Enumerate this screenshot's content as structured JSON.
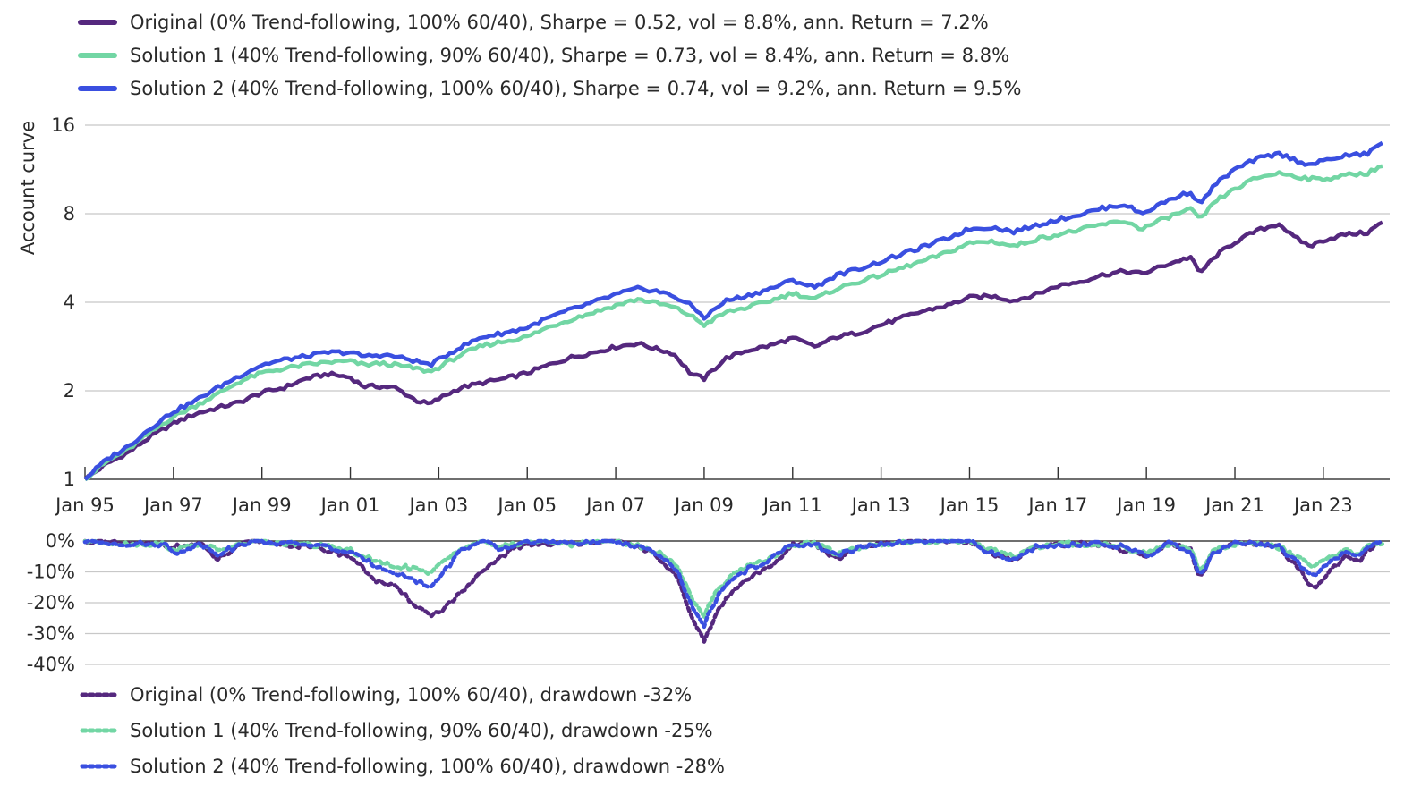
{
  "chart_data": [
    {
      "type": "line",
      "ylabel": "Account curve",
      "yscale": "log2",
      "ylim": [
        1,
        16
      ],
      "yticks": [
        "1",
        "2",
        "4",
        "8",
        "16"
      ],
      "xlim": [
        1995.0,
        2024.5
      ],
      "xticks": [
        "Jan 95",
        "Jan 97",
        "Jan 99",
        "Jan 01",
        "Jan 03",
        "Jan 05",
        "Jan 07",
        "Jan 09",
        "Jan 11",
        "Jan 13",
        "Jan 15",
        "Jan 17",
        "Jan 19",
        "Jan 21",
        "Jan 23"
      ],
      "grid": "horizontal",
      "legend_position": "top-left",
      "series": [
        {
          "name": "Original (0% Trend-following, 100% 60/40), Sharpe = 0.52, vol = 8.8%, ann. Return = 7.2%",
          "color": "#55287e",
          "x": [
            1995.0,
            1995.5,
            1996.0,
            1996.5,
            1997.0,
            1997.5,
            1998.0,
            1998.5,
            1999.0,
            1999.5,
            2000.0,
            2000.5,
            2001.0,
            2001.3,
            2001.7,
            2002.0,
            2002.5,
            2002.8,
            2003.0,
            2003.5,
            2004.0,
            2004.5,
            2005.0,
            2005.5,
            2006.0,
            2006.5,
            2007.0,
            2007.5,
            2007.9,
            2008.3,
            2008.7,
            2009.0,
            2009.5,
            2010.0,
            2010.5,
            2011.0,
            2011.5,
            2012.0,
            2012.5,
            2013.0,
            2013.5,
            2014.0,
            2014.5,
            2015.0,
            2015.5,
            2016.0,
            2016.5,
            2017.0,
            2017.5,
            2018.0,
            2018.5,
            2018.9,
            2019.5,
            2020.0,
            2020.2,
            2020.6,
            2021.0,
            2021.5,
            2022.0,
            2022.3,
            2022.7,
            2023.0,
            2023.5,
            2024.0,
            2024.4
          ],
          "values": [
            1.0,
            1.13,
            1.24,
            1.4,
            1.55,
            1.67,
            1.75,
            1.83,
            1.97,
            2.05,
            2.2,
            2.28,
            2.22,
            2.07,
            2.07,
            2.05,
            1.85,
            1.8,
            1.88,
            2.05,
            2.13,
            2.2,
            2.3,
            2.45,
            2.6,
            2.7,
            2.82,
            2.9,
            2.78,
            2.68,
            2.28,
            2.2,
            2.58,
            2.75,
            2.85,
            3.02,
            2.82,
            3.05,
            3.15,
            3.35,
            3.55,
            3.75,
            3.9,
            4.15,
            4.2,
            4.05,
            4.25,
            4.55,
            4.7,
            4.95,
            5.1,
            5.0,
            5.4,
            5.7,
            5.0,
            5.8,
            6.4,
            7.0,
            7.4,
            6.7,
            6.2,
            6.5,
            6.8,
            6.9,
            7.6
          ]
        },
        {
          "name": "Solution 1 (40% Trend-following, 90% 60/40), Sharpe = 0.73, vol = 8.4%, ann. Return = 8.8%",
          "color": "#72d6a4",
          "x": [
            1995.0,
            1995.5,
            1996.0,
            1996.5,
            1997.0,
            1997.5,
            1998.0,
            1998.5,
            1999.0,
            1999.5,
            2000.0,
            2000.5,
            2001.0,
            2001.3,
            2001.7,
            2002.0,
            2002.5,
            2002.8,
            2003.0,
            2003.5,
            2004.0,
            2004.5,
            2005.0,
            2005.5,
            2006.0,
            2006.5,
            2007.0,
            2007.5,
            2007.9,
            2008.3,
            2008.7,
            2009.0,
            2009.5,
            2010.0,
            2010.5,
            2011.0,
            2011.5,
            2012.0,
            2012.5,
            2013.0,
            2013.5,
            2014.0,
            2014.5,
            2015.0,
            2015.5,
            2016.0,
            2016.5,
            2017.0,
            2017.5,
            2018.0,
            2018.5,
            2018.9,
            2019.5,
            2020.0,
            2020.2,
            2020.6,
            2021.0,
            2021.5,
            2022.0,
            2022.3,
            2022.7,
            2023.0,
            2023.5,
            2024.0,
            2024.4
          ],
          "values": [
            1.0,
            1.15,
            1.27,
            1.45,
            1.63,
            1.78,
            1.95,
            2.15,
            2.3,
            2.38,
            2.45,
            2.5,
            2.52,
            2.45,
            2.48,
            2.45,
            2.38,
            2.32,
            2.4,
            2.65,
            2.85,
            2.95,
            3.05,
            3.3,
            3.5,
            3.7,
            3.9,
            4.1,
            3.98,
            3.85,
            3.6,
            3.35,
            3.7,
            3.85,
            4.05,
            4.3,
            4.1,
            4.45,
            4.7,
            4.95,
            5.25,
            5.55,
            5.9,
            6.35,
            6.45,
            6.2,
            6.55,
            6.8,
            7.05,
            7.35,
            7.55,
            7.1,
            7.8,
            8.3,
            7.6,
            8.9,
            9.7,
            10.6,
            11.0,
            10.8,
            10.5,
            10.5,
            10.8,
            11.0,
            11.8
          ]
        },
        {
          "name": "Solution 2 (40% Trend-following, 100% 60/40), Sharpe = 0.74, vol = 9.2%, ann. Return = 9.5%",
          "color": "#3a4fe0",
          "x": [
            1995.0,
            1995.5,
            1996.0,
            1996.5,
            1997.0,
            1997.5,
            1998.0,
            1998.5,
            1999.0,
            1999.5,
            2000.0,
            2000.5,
            2001.0,
            2001.3,
            2001.7,
            2002.0,
            2002.5,
            2002.8,
            2003.0,
            2003.5,
            2004.0,
            2004.5,
            2005.0,
            2005.5,
            2006.0,
            2006.5,
            2007.0,
            2007.5,
            2007.9,
            2008.3,
            2008.7,
            2009.0,
            2009.5,
            2010.0,
            2010.5,
            2011.0,
            2011.5,
            2012.0,
            2012.5,
            2013.0,
            2013.5,
            2014.0,
            2014.5,
            2015.0,
            2015.5,
            2016.0,
            2016.5,
            2017.0,
            2017.5,
            2018.0,
            2018.5,
            2018.9,
            2019.5,
            2020.0,
            2020.2,
            2020.6,
            2021.0,
            2021.5,
            2022.0,
            2022.3,
            2022.7,
            2023.0,
            2023.5,
            2024.0,
            2024.4
          ],
          "values": [
            1.0,
            1.17,
            1.3,
            1.5,
            1.7,
            1.85,
            2.05,
            2.25,
            2.45,
            2.55,
            2.62,
            2.7,
            2.7,
            2.62,
            2.65,
            2.62,
            2.52,
            2.45,
            2.55,
            2.82,
            3.05,
            3.15,
            3.28,
            3.55,
            3.78,
            4.0,
            4.25,
            4.45,
            4.38,
            4.2,
            3.9,
            3.55,
            4.05,
            4.22,
            4.45,
            4.75,
            4.5,
            4.95,
            5.2,
            5.5,
            5.85,
            6.2,
            6.6,
            7.1,
            7.2,
            6.95,
            7.3,
            7.65,
            7.95,
            8.35,
            8.6,
            8.0,
            8.9,
            9.5,
            8.6,
            10.2,
            11.3,
            12.3,
            12.8,
            12.3,
            11.7,
            12.1,
            12.6,
            12.8,
            14.2
          ]
        }
      ]
    },
    {
      "type": "line",
      "ylim": [
        -40,
        0
      ],
      "yticks": [
        "0%",
        "-10%",
        "-20%",
        "-30%",
        "-40%"
      ],
      "xlim": [
        1995.0,
        2024.5
      ],
      "grid": "horizontal",
      "legend_position": "bottom-left",
      "series": [
        {
          "name": "Original (0% Trend-following, 100% 60/40), drawdown -32%",
          "color": "#55287e",
          "x": [
            1995.0,
            1996.0,
            1996.8,
            1997.0,
            1997.6,
            1998.0,
            1998.6,
            1998.8,
            1999.0,
            1999.5,
            2000.0,
            2000.5,
            2001.0,
            2001.3,
            2001.6,
            2002.0,
            2002.5,
            2002.8,
            2003.0,
            2003.5,
            2004.0,
            2004.4,
            2004.8,
            2005.0,
            2006.0,
            2006.4,
            2007.0,
            2007.6,
            2008.0,
            2008.4,
            2008.7,
            2009.0,
            2009.3,
            2009.6,
            2010.0,
            2010.4,
            2010.8,
            2011.0,
            2011.5,
            2012.0,
            2012.5,
            2013.0,
            2014.0,
            2014.5,
            2015.0,
            2015.5,
            2016.0,
            2016.5,
            2017.0,
            2018.0,
            2018.5,
            2019.0,
            2019.5,
            2020.0,
            2020.2,
            2020.5,
            2021.0,
            2021.5,
            2022.0,
            2022.5,
            2022.8,
            2023.0,
            2023.5,
            2023.8,
            2024.0,
            2024.4
          ],
          "values": [
            0,
            -1,
            -1,
            -2,
            -1,
            -6,
            -1,
            0,
            0,
            -1,
            -2,
            -3,
            -5,
            -9,
            -13,
            -15,
            -21,
            -24,
            -23,
            -17,
            -10,
            -5,
            -2,
            -1,
            -1,
            0,
            0,
            -2,
            -6,
            -12,
            -25,
            -32,
            -23,
            -17,
            -12,
            -9,
            -4,
            -1,
            -1,
            -6,
            -2,
            -1,
            0,
            0,
            0,
            -4,
            -6,
            -2,
            -1,
            -1,
            -3,
            -5,
            -1,
            -3,
            -12,
            -4,
            -1,
            -1,
            -2,
            -10,
            -16,
            -12,
            -5,
            -7,
            -3,
            0
          ]
        },
        {
          "name": "Solution 1 (40% Trend-following, 90% 60/40), drawdown -25%",
          "color": "#72d6a4",
          "x": [
            1995.0,
            1996.0,
            1996.8,
            1997.0,
            1997.6,
            1998.0,
            1998.6,
            1998.8,
            1999.0,
            1999.5,
            2000.0,
            2000.5,
            2001.0,
            2001.3,
            2001.6,
            2002.0,
            2002.5,
            2002.8,
            2003.0,
            2003.5,
            2004.0,
            2004.4,
            2004.8,
            2005.0,
            2006.0,
            2006.4,
            2007.0,
            2007.6,
            2008.0,
            2008.4,
            2008.7,
            2009.0,
            2009.3,
            2009.6,
            2010.0,
            2010.4,
            2010.8,
            2011.0,
            2011.5,
            2012.0,
            2012.5,
            2013.0,
            2014.0,
            2014.5,
            2015.0,
            2015.5,
            2016.0,
            2016.5,
            2017.0,
            2018.0,
            2018.5,
            2019.0,
            2019.5,
            2020.0,
            2020.2,
            2020.5,
            2021.0,
            2021.5,
            2022.0,
            2022.5,
            2022.8,
            2023.0,
            2023.5,
            2023.8,
            2024.0,
            2024.4
          ],
          "values": [
            0,
            -1,
            -1,
            -3,
            -1,
            -3,
            -1,
            0,
            0,
            -1,
            -1,
            -2,
            -3,
            -5,
            -7,
            -8,
            -9,
            -11,
            -8,
            -2,
            0,
            -2,
            -1,
            0,
            -1,
            0,
            0,
            -2,
            -4,
            -8,
            -18,
            -24,
            -16,
            -11,
            -8,
            -6,
            -3,
            -1,
            -1,
            -4,
            -2,
            -1,
            0,
            0,
            0,
            -3,
            -5,
            -2,
            -1,
            -1,
            -2,
            -4,
            -1,
            -2,
            -10,
            -3,
            -1,
            -1,
            -2,
            -6,
            -9,
            -6,
            -3,
            -4,
            -2,
            0
          ]
        },
        {
          "name": "Solution 2 (40% Trend-following, 100% 60/40), drawdown -28%",
          "color": "#3a4fe0",
          "x": [
            1995.0,
            1996.0,
            1996.8,
            1997.0,
            1997.6,
            1998.0,
            1998.6,
            1998.8,
            1999.0,
            1999.5,
            2000.0,
            2000.5,
            2001.0,
            2001.3,
            2001.6,
            2002.0,
            2002.5,
            2002.8,
            2003.0,
            2003.5,
            2004.0,
            2004.4,
            2004.8,
            2005.0,
            2006.0,
            2006.4,
            2007.0,
            2007.6,
            2008.0,
            2008.4,
            2008.7,
            2009.0,
            2009.3,
            2009.6,
            2010.0,
            2010.4,
            2010.8,
            2011.0,
            2011.5,
            2012.0,
            2012.5,
            2013.0,
            2014.0,
            2014.5,
            2015.0,
            2015.5,
            2016.0,
            2016.5,
            2017.0,
            2018.0,
            2018.5,
            2019.0,
            2019.5,
            2020.0,
            2020.2,
            2020.5,
            2021.0,
            2021.5,
            2022.0,
            2022.5,
            2022.8,
            2023.0,
            2023.5,
            2023.8,
            2024.0,
            2024.4
          ],
          "values": [
            0,
            -1,
            -1,
            -4,
            -1,
            -4,
            -1,
            0,
            0,
            -1,
            -1,
            -2,
            -4,
            -6,
            -8,
            -10,
            -13,
            -15,
            -12,
            -3,
            0,
            -3,
            -1,
            0,
            -1,
            0,
            0,
            -2,
            -5,
            -10,
            -21,
            -27,
            -18,
            -13,
            -9,
            -7,
            -3,
            -1,
            -1,
            -5,
            -2,
            -1,
            0,
            0,
            0,
            -4,
            -6,
            -2,
            -1,
            -1,
            -2,
            -5,
            -1,
            -3,
            -12,
            -4,
            -1,
            -1,
            -2,
            -8,
            -12,
            -8,
            -4,
            -5,
            -2,
            0
          ]
        }
      ]
    }
  ]
}
